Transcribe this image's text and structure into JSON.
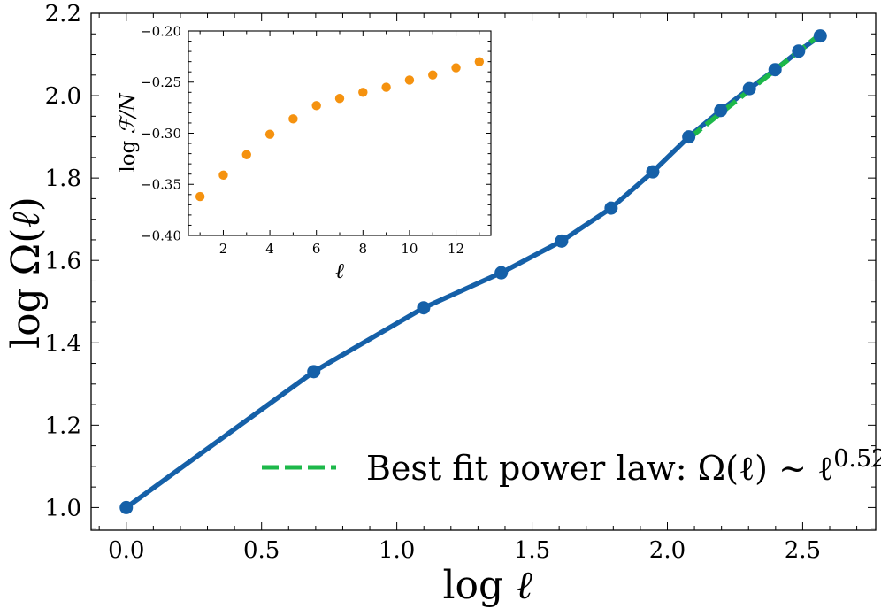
{
  "chart_data": [
    {
      "type": "line",
      "xlabel": "log ℓ",
      "ylabel": "log Ω(ℓ)",
      "xlim": [
        -0.13,
        2.77
      ],
      "ylim": [
        0.945,
        2.2
      ],
      "xticks": [
        0.0,
        0.5,
        1.0,
        1.5,
        2.0,
        2.5
      ],
      "xtick_labels": [
        "0.0",
        "0.5",
        "1.0",
        "1.5",
        "2.0",
        "2.5"
      ],
      "yticks": [
        1.0,
        1.2,
        1.4,
        1.6,
        1.8,
        2.0,
        2.2
      ],
      "ytick_labels": [
        "1.0",
        "1.2",
        "1.4",
        "1.6",
        "1.8",
        "2.0",
        "2.2"
      ],
      "series": [
        {
          "name": "log Ω(ℓ)",
          "color": "#1560a8",
          "x": [
            0.0,
            0.693,
            1.099,
            1.386,
            1.609,
            1.792,
            1.946,
            2.079,
            2.197,
            2.303,
            2.398,
            2.485,
            2.565
          ],
          "y": [
            1.0,
            1.33,
            1.485,
            1.57,
            1.647,
            1.727,
            1.815,
            1.9,
            1.964,
            2.017,
            2.063,
            2.108,
            2.145
          ]
        },
        {
          "name": "Best fit power law",
          "style": "dashed",
          "color": "#1db84a",
          "x": [
            2.079,
            2.565
          ],
          "y": [
            1.896,
            2.149
          ]
        }
      ],
      "legend": {
        "position": "lower-right",
        "label_prefix": "Best fit power law: Ω(ℓ) ~ ℓ",
        "exponent": "0.52"
      }
    },
    {
      "type": "scatter",
      "xlabel": "ℓ",
      "ylabel_prefix": "log ",
      "ylabel_symbol": "ℱ",
      "ylabel_suffix": "/N",
      "xlim": [
        0.5,
        13.5
      ],
      "ylim": [
        -0.4,
        -0.2
      ],
      "xticks": [
        2,
        4,
        6,
        8,
        10,
        12
      ],
      "xtick_labels": [
        "2",
        "4",
        "6",
        "8",
        "10",
        "12"
      ],
      "yticks": [
        -0.4,
        -0.35,
        -0.3,
        -0.25,
        -0.2
      ],
      "ytick_labels": [
        "−0.40",
        "−0.35",
        "−0.30",
        "−0.25",
        "−0.20"
      ],
      "series": [
        {
          "name": "log F/N",
          "color": "#f5920f",
          "x": [
            1,
            2,
            3,
            4,
            5,
            6,
            7,
            8,
            9,
            10,
            11,
            12,
            13
          ],
          "y": [
            -0.362,
            -0.341,
            -0.321,
            -0.301,
            -0.286,
            -0.273,
            -0.266,
            -0.26,
            -0.255,
            -0.248,
            -0.243,
            -0.236,
            -0.23
          ]
        }
      ]
    }
  ]
}
